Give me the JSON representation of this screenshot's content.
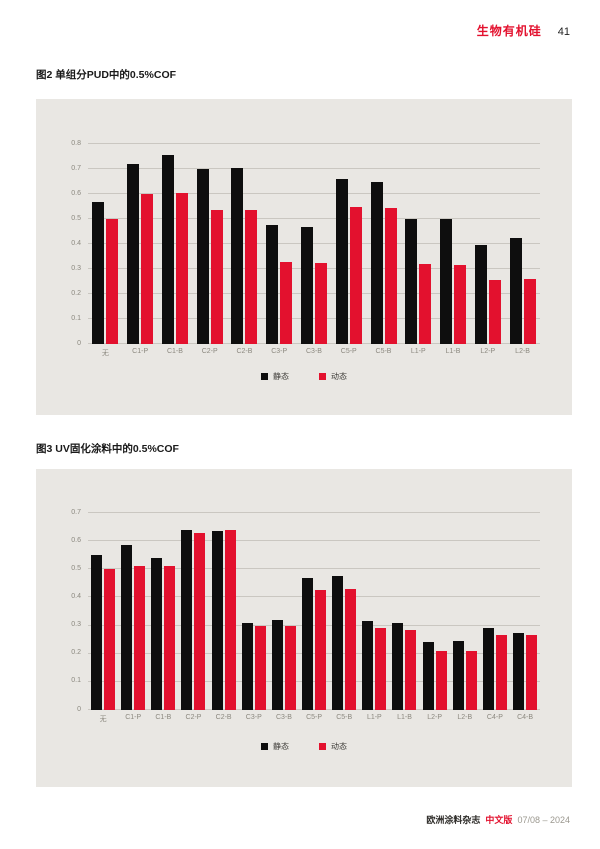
{
  "header": {
    "section_title": "生物有机硅",
    "page_number": "41"
  },
  "footer": {
    "journal": "欧洲涂料杂志",
    "edition": "中文版",
    "issue": "07/08 – 2024"
  },
  "colors": {
    "accent_red": "#e3112e",
    "bar_black": "#0e0e0e",
    "panel_bg": "#e9e7e3",
    "gridline": "#cac7c1",
    "tick_text": "#8b887f"
  },
  "charts": [
    {
      "title": "图2 单组分PUD中的0.5%COF",
      "chart_data": {
        "type": "bar",
        "categories": [
          "无",
          "C1-P",
          "C1-B",
          "C2-P",
          "C2-B",
          "C3-P",
          "C3-B",
          "C5-P",
          "C5-B",
          "L1-P",
          "L1-B",
          "L2-P",
          "L2-B"
        ],
        "series": [
          {
            "name": "静态",
            "color": "#0e0e0e",
            "values": [
              0.57,
              0.72,
              0.755,
              0.7,
              0.705,
              0.475,
              0.47,
              0.66,
              0.65,
              0.5,
              0.5,
              0.395,
              0.425
            ]
          },
          {
            "name": "动态",
            "color": "#e3112e",
            "values": [
              0.5,
              0.6,
              0.605,
              0.535,
              0.535,
              0.33,
              0.325,
              0.55,
              0.545,
              0.32,
              0.315,
              0.255,
              0.26
            ]
          }
        ],
        "title": "图2 单组分PUD中的0.5%COF",
        "xlabel": "",
        "ylabel": "",
        "ylim": [
          0,
          0.8
        ],
        "ytick_step": 0.1,
        "grid": true,
        "legend_position": "bottom"
      }
    },
    {
      "title": "图3 UV固化涂料中的0.5%COF",
      "chart_data": {
        "type": "bar",
        "categories": [
          "无",
          "C1-P",
          "C1-B",
          "C2-P",
          "C2-B",
          "C3-P",
          "C3-B",
          "C5-P",
          "C5-B",
          "L1-P",
          "L1-B",
          "L2-P",
          "L2-B",
          "C4-P",
          "C4-B"
        ],
        "series": [
          {
            "name": "静态",
            "color": "#0e0e0e",
            "values": [
              0.55,
              0.585,
              0.54,
              0.64,
              0.635,
              0.31,
              0.32,
              0.47,
              0.475,
              0.315,
              0.31,
              0.24,
              0.245,
              0.29,
              0.275
            ]
          },
          {
            "name": "动态",
            "color": "#e3112e",
            "values": [
              0.5,
              0.51,
              0.51,
              0.63,
              0.64,
              0.3,
              0.3,
              0.425,
              0.43,
              0.29,
              0.285,
              0.21,
              0.21,
              0.265,
              0.265
            ]
          }
        ],
        "title": "图3 UV固化涂料中的0.5%COF",
        "xlabel": "",
        "ylabel": "",
        "ylim": [
          0,
          0.7
        ],
        "ytick_step": 0.1,
        "grid": true,
        "legend_position": "bottom"
      }
    }
  ]
}
